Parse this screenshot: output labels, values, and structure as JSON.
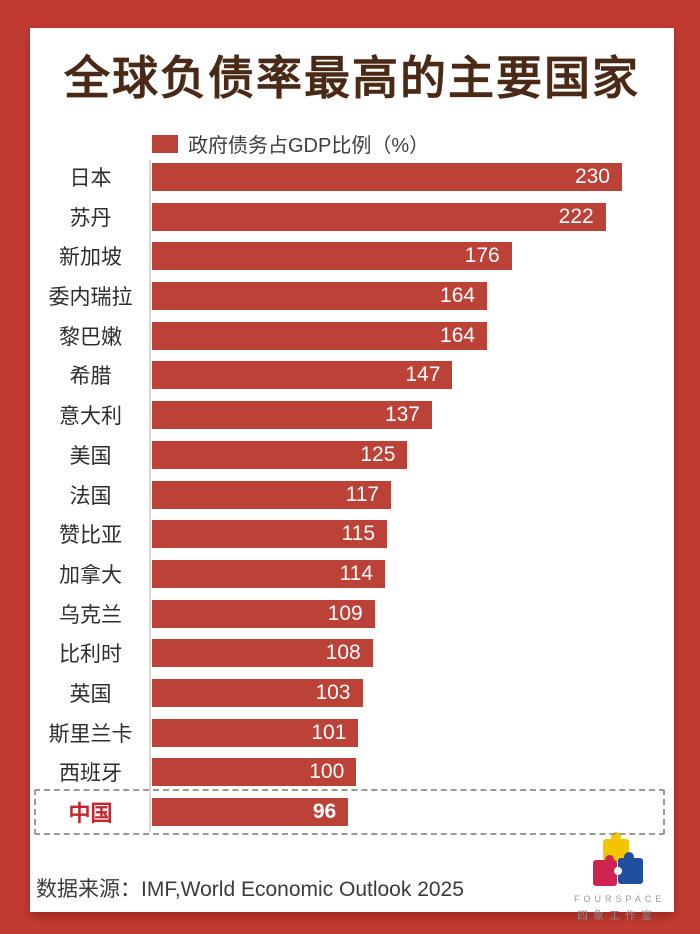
{
  "page": {
    "title": "全球负债率最高的主要国家",
    "source_label": "数据来源：",
    "source_text": "IMF,World Economic Outlook 2025",
    "logo": {
      "name": "FOURSPACE",
      "subtitle": "四象工作室"
    }
  },
  "colors": {
    "frame_red": "#c23b32",
    "bar_red": "#bc4136",
    "title_brown": "#4a2a16",
    "highlight_red": "#c4262e",
    "axis_gray": "#d8d8d8",
    "dashed_border_gray": "#9a9a9a",
    "logo_yellow": "#f2c500",
    "logo_crimson": "#cf2352",
    "logo_blue": "#204f9e"
  },
  "chart_data": {
    "type": "bar",
    "orientation": "horizontal",
    "title": "全球负债率最高的主要国家",
    "legend": "政府债务占GDP比例（%）",
    "legend_position": "top",
    "grid": false,
    "value_labels": "inside-end",
    "xlim": [
      0,
      230
    ],
    "categories": [
      "日本",
      "苏丹",
      "新加坡",
      "委内瑞拉",
      "黎巴嫩",
      "希腊",
      "意大利",
      "美国",
      "法国",
      "赞比亚",
      "加拿大",
      "乌克兰",
      "比利时",
      "英国",
      "斯里兰卡",
      "西班牙",
      "中国"
    ],
    "values": [
      230,
      222,
      176,
      164,
      164,
      147,
      137,
      125,
      117,
      115,
      114,
      109,
      108,
      103,
      101,
      100,
      96
    ],
    "highlight_category": "中国",
    "highlight_style": "dashed-box"
  }
}
